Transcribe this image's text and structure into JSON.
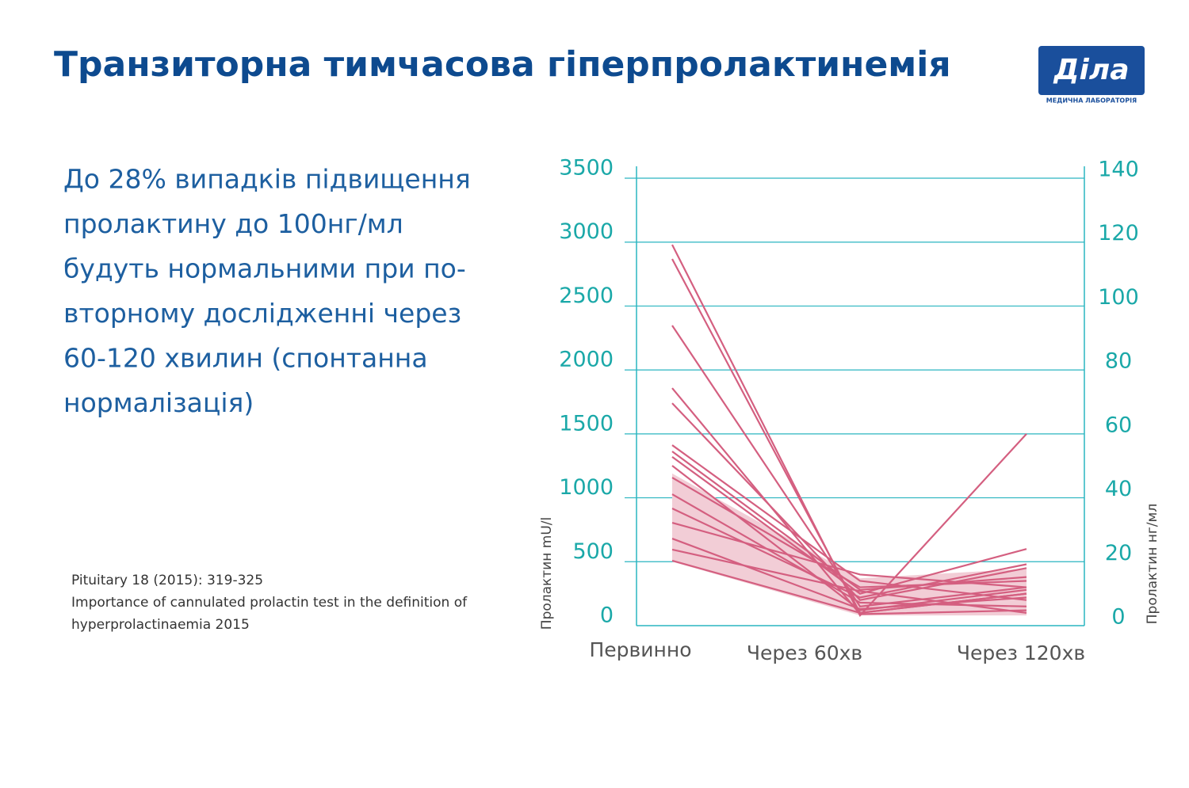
{
  "header": {
    "title": "Транзиторна тимчасова гіперпролактинемія",
    "logo": "Діла",
    "logo_subtitle": "МЕДИЧНА ЛАБОРАТОРІЯ"
  },
  "body": {
    "lines": [
      "До 28% випадків підвищення",
      "пролактину до 100нг/мл",
      "будуть нормальними при по-",
      "вторному дослідженні через",
      "60-120 хвилин (спонтанна",
      "нормалізація)"
    ]
  },
  "citation": {
    "lines": [
      "Pituitary 18 (2015): 319-325",
      "Importance of cannulated prolactin test in the definition of",
      "hyperprolactinaemia 2015"
    ]
  },
  "chart_data": {
    "type": "line",
    "categories": [
      "Первинно",
      "Через 60хв",
      "Через 120хв"
    ],
    "y_label": "Пролактин mU/l",
    "y2_label": "Пролактин нг/мл",
    "ylim": [
      0,
      3500
    ],
    "yticks": [
      0,
      500,
      1000,
      1500,
      2000,
      2500,
      3000,
      3500
    ],
    "y2lim": [
      0,
      140
    ],
    "y2ticks": [
      0,
      20,
      40,
      60,
      80,
      100,
      120,
      140
    ],
    "grid": true,
    "band": {
      "color": "#f2cdd6",
      "upper": [
        1190,
        370,
        445
      ],
      "lower": [
        500,
        80,
        80
      ]
    },
    "series": [
      {
        "color": "#d45f80",
        "values": [
          2980,
          80,
          1500
        ]
      },
      {
        "color": "#d45f80",
        "values": [
          2868,
          100,
          250
        ]
      },
      {
        "color": "#d45f80",
        "values": [
          2348,
          150,
          300
        ]
      },
      {
        "color": "#d45f80",
        "values": [
          1858,
          90,
          120
        ]
      },
      {
        "color": "#d45f80",
        "values": [
          1740,
          200,
          450
        ]
      },
      {
        "color": "#d45f80",
        "values": [
          1412,
          350,
          200
        ]
      },
      {
        "color": "#d45f80",
        "values": [
          1363,
          280,
          380
        ]
      },
      {
        "color": "#d45f80",
        "values": [
          1320,
          250,
          600
        ]
      },
      {
        "color": "#d45f80",
        "values": [
          1251,
          120,
          280
        ]
      },
      {
        "color": "#d45f80",
        "values": [
          1158,
          300,
          350
        ]
      },
      {
        "color": "#d45f80",
        "values": [
          1028,
          180,
          150
        ]
      },
      {
        "color": "#d45f80",
        "values": [
          917,
          220,
          480
        ]
      },
      {
        "color": "#d45f80",
        "values": [
          805,
          400,
          300
        ]
      },
      {
        "color": "#d45f80",
        "values": [
          681,
          130,
          220
        ]
      },
      {
        "color": "#d45f80",
        "values": [
          595,
          270,
          100
        ]
      },
      {
        "color": "#d45f80",
        "values": [
          508,
          100,
          250
        ]
      }
    ]
  }
}
